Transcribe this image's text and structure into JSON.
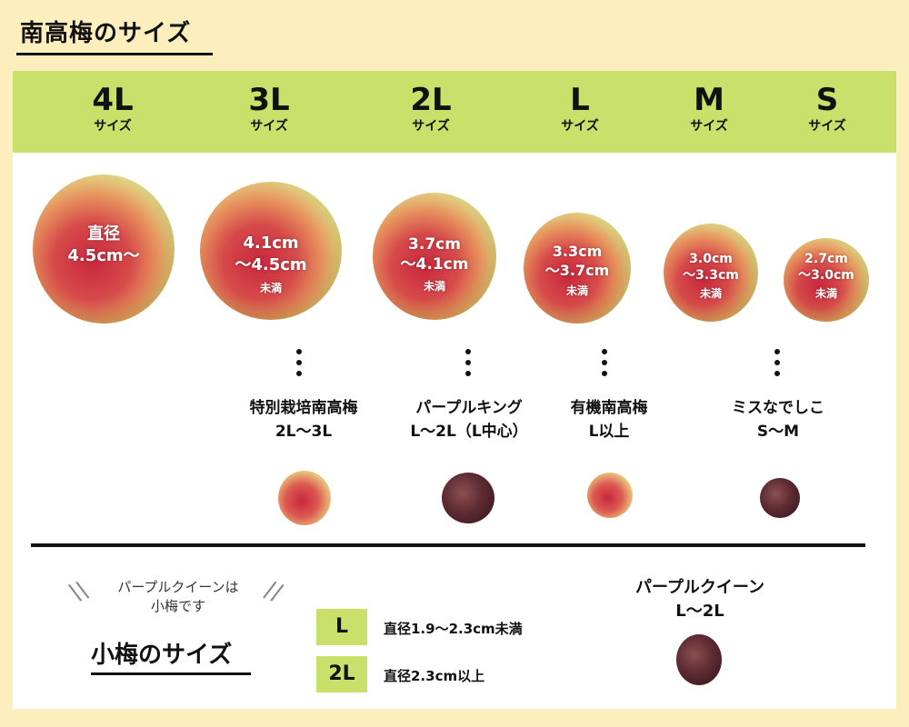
{
  "page_title": "南高梅のサイズ",
  "sizes": [
    {
      "size": "4L",
      "suffix": "サイズ",
      "diameter_line1": "直径",
      "diameter_line2": "4.5cm〜",
      "note": ""
    },
    {
      "size": "3L",
      "suffix": "サイズ",
      "diameter_line1": "4.1cm",
      "diameter_line2": "〜4.5cm",
      "note": "未満"
    },
    {
      "size": "2L",
      "suffix": "サイズ",
      "diameter_line1": "3.7cm",
      "diameter_line2": "〜4.1cm",
      "note": "未満"
    },
    {
      "size": "L",
      "suffix": "サイズ",
      "diameter_line1": "3.3cm",
      "diameter_line2": "〜3.7cm",
      "note": "未満"
    },
    {
      "size": "M",
      "suffix": "サイズ",
      "diameter_line1": "3.0cm",
      "diameter_line2": "〜3.3cm",
      "note": "未満"
    },
    {
      "size": "S",
      "suffix": "サイズ",
      "diameter_line1": "2.7cm",
      "diameter_line2": "〜3.0cm",
      "note": "未満"
    }
  ],
  "varieties": [
    {
      "name": "特別栽培南高梅",
      "range": "2L〜3L",
      "color": "red"
    },
    {
      "name": "パープルキング",
      "range": "L〜2L（L中心）",
      "color": "purple"
    },
    {
      "name": "有機南高梅",
      "range": "L以上",
      "color": "red"
    },
    {
      "name": "ミスなでしこ",
      "range": "S〜M",
      "color": "purple"
    }
  ],
  "koume": {
    "note_line1": "パープルクイーンは",
    "note_line2": "小梅です",
    "title": "小梅のサイズ",
    "sizes": [
      {
        "size": "L",
        "desc": "直径1.9〜2.3cm未満"
      },
      {
        "size": "2L",
        "desc": "直径2.3cm以上"
      }
    ],
    "variety_name": "パープルクイーン",
    "variety_range": "L〜2L"
  },
  "colors": {
    "accent": "#c9e06a",
    "background": "#fdeebd"
  }
}
